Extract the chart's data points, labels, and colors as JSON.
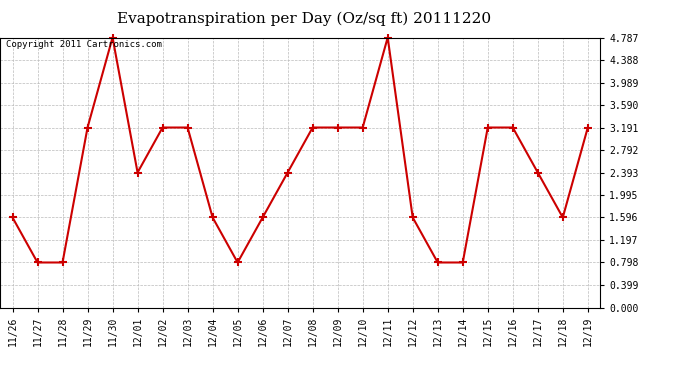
{
  "title": "Evapotranspiration per Day (Oz/sq ft) 20111220",
  "copyright_text": "Copyright 2011 Cartronics.com",
  "dates": [
    "11/26",
    "11/27",
    "11/28",
    "11/29",
    "11/30",
    "12/01",
    "12/02",
    "12/03",
    "12/04",
    "12/05",
    "12/06",
    "12/07",
    "12/08",
    "12/09",
    "12/10",
    "12/11",
    "12/12",
    "12/13",
    "12/14",
    "12/15",
    "12/16",
    "12/17",
    "12/18",
    "12/19"
  ],
  "values": [
    1.596,
    0.798,
    0.798,
    3.191,
    4.787,
    2.393,
    3.191,
    3.191,
    1.596,
    0.798,
    1.596,
    2.393,
    3.191,
    3.191,
    3.191,
    4.787,
    1.596,
    0.798,
    0.798,
    3.191,
    3.191,
    2.393,
    1.596,
    3.191
  ],
  "yticks": [
    0.0,
    0.399,
    0.798,
    1.197,
    1.596,
    1.995,
    2.393,
    2.792,
    3.191,
    3.59,
    3.989,
    4.388,
    4.787
  ],
  "line_color": "#cc0000",
  "marker": "+",
  "marker_size": 6,
  "marker_linewidth": 1.5,
  "line_width": 1.5,
  "background_color": "#ffffff",
  "grid_color": "#bbbbbb",
  "title_fontsize": 11,
  "copyright_fontsize": 6.5,
  "tick_fontsize": 7,
  "ylim": [
    0.0,
    4.787
  ],
  "ylabel_color": "#000000"
}
